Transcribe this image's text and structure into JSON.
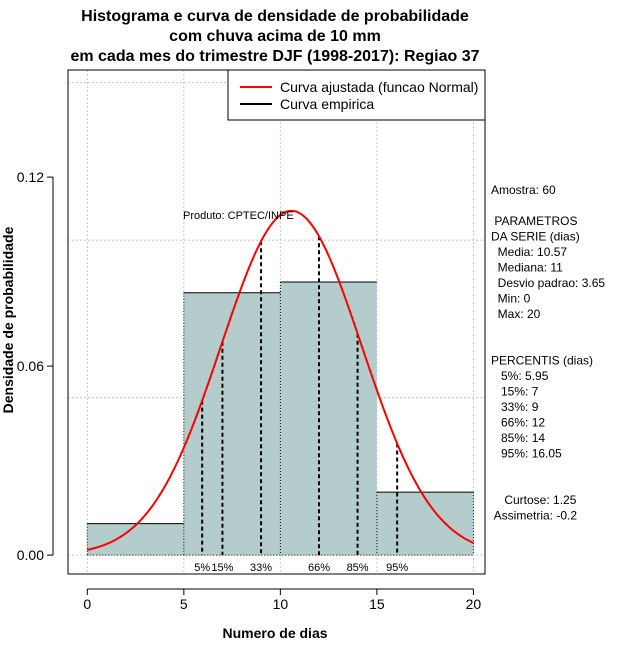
{
  "chart_data": {
    "type": "bar",
    "title": [
      "Histograma e curva de densidade de probabilidade",
      "com chuva acima de 10 mm",
      "em cada mes do trimestre DJF (1998-2017): Regiao 37"
    ],
    "xlabel": "Numero de dias",
    "ylabel": "Densidade de probabilidade",
    "xlim": [
      -1,
      20.6
    ],
    "ylim": [
      -0.006,
      0.154
    ],
    "x_ticks": [
      0,
      5,
      10,
      15,
      20
    ],
    "x_tick_labels": [
      "0",
      "5",
      "10",
      "15",
      "20"
    ],
    "y_ticks": [
      0.0,
      0.06,
      0.12
    ],
    "y_tick_labels": [
      "0.00",
      "0.06",
      "0.12"
    ],
    "grid": true,
    "bins": [
      {
        "x0": 0,
        "x1": 5,
        "density": 0.01
      },
      {
        "x0": 5,
        "x1": 10,
        "density": 0.0833
      },
      {
        "x0": 10,
        "x1": 15,
        "density": 0.0867
      },
      {
        "x0": 15,
        "x1": 20,
        "density": 0.02
      }
    ],
    "normal_curve": {
      "mean": 10.57,
      "sd": 3.65,
      "x_range": [
        0,
        20
      ],
      "color": "#ff0000"
    },
    "percentile_lines": [
      {
        "label": "5%",
        "x": 5.95
      },
      {
        "label": "15%",
        "x": 7
      },
      {
        "label": "33%",
        "x": 9
      },
      {
        "label": "66%",
        "x": 12
      },
      {
        "label": "85%",
        "x": 14
      },
      {
        "label": "95%",
        "x": 16.05
      }
    ],
    "legend": {
      "placement": "top-right",
      "entries": [
        {
          "label": "Curva ajustada (funcao Normal)",
          "color": "#ff0000"
        },
        {
          "label": "Curva empirica",
          "color": "#000000"
        }
      ]
    },
    "annotation": "Produto: CPTEC/INPE",
    "bar_color": "#b4cccc"
  },
  "side_panel": {
    "lines": [
      "Amostra: 60",
      "",
      " PARAMETROS",
      "DA SERIE (dias)",
      "  Media: 10.57",
      "  Mediana: 11",
      "  Desvio padrao: 3.65",
      "  Min: 0",
      "  Max: 20",
      "",
      "",
      "PERCENTIS (dias)",
      "   5%: 5.95",
      "   15%: 7",
      "   33%: 9",
      "   66%: 12",
      "   85%: 14",
      "   95%: 16.05",
      "",
      "",
      "    Curtose: 1.25",
      " Assimetria: -0.2"
    ]
  }
}
